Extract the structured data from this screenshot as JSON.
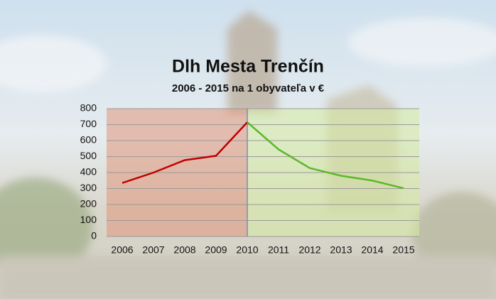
{
  "chart_data": {
    "type": "line",
    "title": "Dlh Mesta Trenčín",
    "subtitle": "2006 - 2015 na 1 obyvateľa v €",
    "categories": [
      "2006",
      "2007",
      "2008",
      "2009",
      "2010",
      "2011",
      "2012",
      "2013",
      "2014",
      "2015"
    ],
    "series": [
      {
        "color": "#c00000",
        "values": [
          335,
          400,
          478,
          505,
          715,
          null,
          null,
          null,
          null,
          null
        ]
      },
      {
        "color": "#5cb82a",
        "values": [
          null,
          null,
          null,
          null,
          715,
          545,
          428,
          380,
          350,
          302
        ]
      }
    ],
    "ylim": [
      0,
      800
    ],
    "yticks": [
      0,
      100,
      200,
      300,
      400,
      500,
      600,
      700,
      800
    ],
    "grid": true
  }
}
